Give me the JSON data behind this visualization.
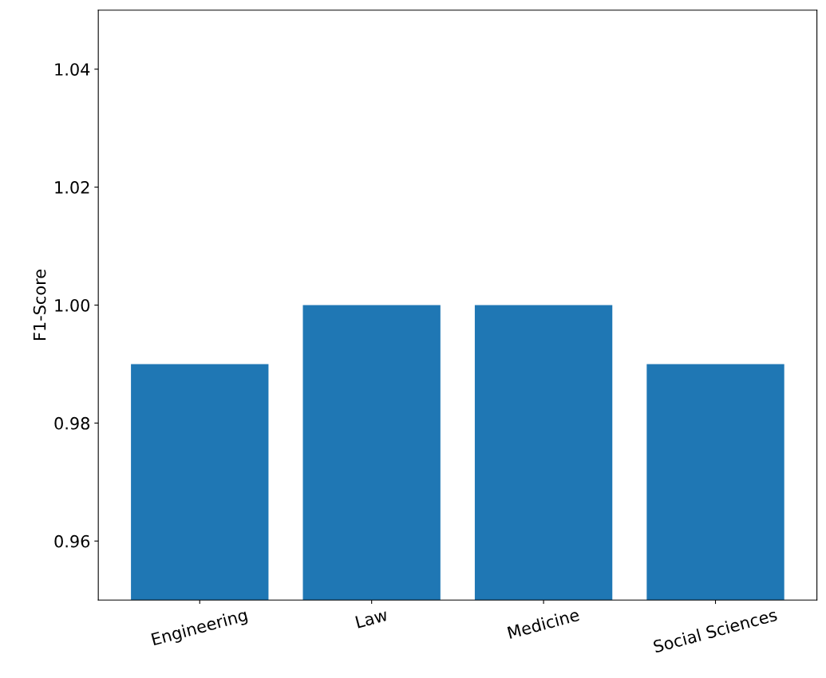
{
  "chart_data": {
    "type": "bar",
    "ylabel": "F1-Score",
    "categories": [
      "Engineering",
      "Law",
      "Medicine",
      "Social Sciences"
    ],
    "values": [
      0.99,
      1.0,
      1.0,
      0.99
    ],
    "color": "#1f77b4",
    "ylim": [
      0.95,
      1.05
    ],
    "yticks": [
      {
        "value": 0.96,
        "label": "0.96"
      },
      {
        "value": 0.98,
        "label": "0.98"
      },
      {
        "value": 1.0,
        "label": "1.00"
      },
      {
        "value": 1.02,
        "label": "1.02"
      },
      {
        "value": 1.04,
        "label": "1.04"
      }
    ],
    "grid": false
  }
}
